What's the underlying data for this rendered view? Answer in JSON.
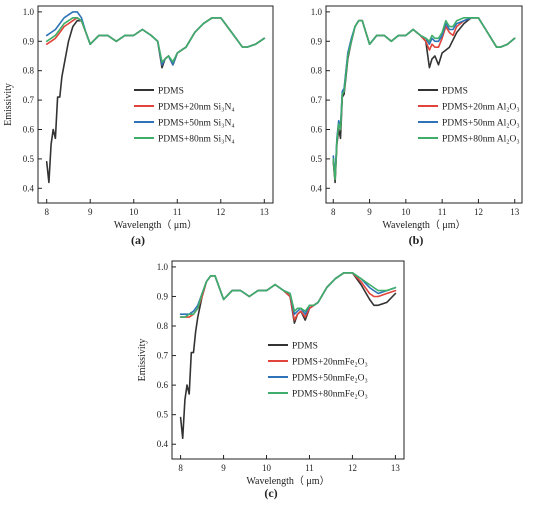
{
  "chart_data": [
    {
      "panel": "(a)",
      "panel_letter": "a",
      "type": "line",
      "xlabel": "Wavelength（ μm）",
      "ylabel": "Emissivity",
      "xlim": [
        7.8,
        13.2
      ],
      "ylim": [
        0.35,
        1.02
      ],
      "xticks": [
        8,
        9,
        10,
        11,
        12,
        13
      ],
      "yticks": [
        0.4,
        0.5,
        0.6,
        0.7,
        0.8,
        0.9,
        1.0
      ],
      "legend_position": "lower-right",
      "grid": false,
      "series": [
        {
          "name": "PDMS",
          "color": "#333333",
          "x": [
            8.0,
            8.05,
            8.1,
            8.15,
            8.2,
            8.25,
            8.3,
            8.35,
            8.4,
            8.45,
            8.5,
            8.6,
            8.7,
            8.8,
            8.9,
            9.0,
            9.2,
            9.4,
            9.6,
            9.8,
            10.0,
            10.2,
            10.4,
            10.55,
            10.65,
            10.72,
            10.8,
            10.9,
            11.0,
            11.1,
            11.2,
            11.4,
            11.6,
            11.8,
            12.0,
            12.2,
            12.4,
            12.5,
            12.6,
            12.8,
            13.0
          ],
          "y": [
            0.49,
            0.42,
            0.55,
            0.6,
            0.57,
            0.71,
            0.71,
            0.78,
            0.82,
            0.86,
            0.9,
            0.95,
            0.97,
            0.97,
            0.93,
            0.89,
            0.92,
            0.92,
            0.9,
            0.92,
            0.92,
            0.94,
            0.92,
            0.9,
            0.81,
            0.84,
            0.85,
            0.82,
            0.86,
            0.87,
            0.88,
            0.93,
            0.96,
            0.98,
            0.98,
            0.94,
            0.9,
            0.88,
            0.88,
            0.89,
            0.91
          ]
        },
        {
          "name": "PDMS+20nm Si₃N₄",
          "color": "#e0443a",
          "x": [
            8.0,
            8.1,
            8.2,
            8.3,
            8.4,
            8.5,
            8.6,
            8.7,
            8.8,
            8.9,
            9.0,
            9.2,
            9.4,
            9.6,
            9.8,
            10.0,
            10.2,
            10.4,
            10.55,
            10.65,
            10.72,
            10.8,
            10.9,
            11.0,
            11.1,
            11.2,
            11.4,
            11.6,
            11.8,
            12.0,
            12.2,
            12.4,
            12.5,
            12.6,
            12.8,
            13.0
          ],
          "y": [
            0.89,
            0.9,
            0.91,
            0.93,
            0.95,
            0.96,
            0.97,
            0.98,
            0.97,
            0.93,
            0.89,
            0.92,
            0.92,
            0.9,
            0.92,
            0.92,
            0.94,
            0.92,
            0.9,
            0.82,
            0.84,
            0.85,
            0.82,
            0.86,
            0.87,
            0.88,
            0.93,
            0.96,
            0.98,
            0.98,
            0.94,
            0.9,
            0.88,
            0.88,
            0.89,
            0.91
          ]
        },
        {
          "name": "PDMS+50nm Si₃N₄",
          "color": "#2e73b8",
          "x": [
            8.0,
            8.1,
            8.2,
            8.3,
            8.4,
            8.5,
            8.6,
            8.7,
            8.8,
            8.9,
            9.0,
            9.2,
            9.4,
            9.6,
            9.8,
            10.0,
            10.2,
            10.4,
            10.55,
            10.65,
            10.72,
            10.8,
            10.9,
            11.0,
            11.1,
            11.2,
            11.4,
            11.6,
            11.8,
            12.0,
            12.2,
            12.4,
            12.5,
            12.6,
            12.8,
            13.0
          ],
          "y": [
            0.92,
            0.93,
            0.94,
            0.96,
            0.98,
            0.99,
            1.0,
            1.0,
            0.98,
            0.93,
            0.89,
            0.92,
            0.92,
            0.9,
            0.92,
            0.92,
            0.94,
            0.92,
            0.9,
            0.82,
            0.84,
            0.85,
            0.82,
            0.86,
            0.87,
            0.88,
            0.93,
            0.96,
            0.98,
            0.98,
            0.94,
            0.9,
            0.88,
            0.88,
            0.89,
            0.91
          ]
        },
        {
          "name": "PDMS+80nm Si₃N₄",
          "color": "#3fae6a",
          "x": [
            8.0,
            8.1,
            8.2,
            8.3,
            8.4,
            8.5,
            8.6,
            8.7,
            8.8,
            8.9,
            9.0,
            9.2,
            9.4,
            9.6,
            9.8,
            10.0,
            10.2,
            10.4,
            10.55,
            10.65,
            10.72,
            10.8,
            10.9,
            11.0,
            11.1,
            11.2,
            11.4,
            11.6,
            11.8,
            12.0,
            12.2,
            12.4,
            12.5,
            12.6,
            12.8,
            13.0
          ],
          "y": [
            0.9,
            0.91,
            0.92,
            0.94,
            0.96,
            0.97,
            0.98,
            0.98,
            0.97,
            0.93,
            0.89,
            0.92,
            0.92,
            0.9,
            0.92,
            0.92,
            0.94,
            0.92,
            0.9,
            0.83,
            0.84,
            0.85,
            0.83,
            0.86,
            0.87,
            0.88,
            0.93,
            0.96,
            0.98,
            0.98,
            0.94,
            0.9,
            0.88,
            0.88,
            0.89,
            0.91
          ]
        }
      ]
    },
    {
      "panel": "(b)",
      "panel_letter": "b",
      "type": "line",
      "xlabel": "Wavelength（ μm）",
      "ylabel": "",
      "xlim": [
        7.8,
        13.2
      ],
      "ylim": [
        0.35,
        1.02
      ],
      "xticks": [
        8,
        9,
        10,
        11,
        12,
        13
      ],
      "yticks": [
        0.4,
        0.5,
        0.6,
        0.7,
        0.8,
        0.9,
        1.0
      ],
      "legend_position": "lower-right",
      "grid": false,
      "series": [
        {
          "name": "PDMS",
          "color": "#333333",
          "x": [
            8.0,
            8.05,
            8.1,
            8.15,
            8.2,
            8.25,
            8.3,
            8.35,
            8.4,
            8.5,
            8.6,
            8.7,
            8.8,
            8.9,
            9.0,
            9.2,
            9.4,
            9.6,
            9.8,
            10.0,
            10.2,
            10.4,
            10.55,
            10.65,
            10.72,
            10.8,
            10.9,
            11.0,
            11.1,
            11.2,
            11.4,
            11.6,
            11.8,
            12.0,
            12.2,
            12.4,
            12.5,
            12.6,
            12.8,
            13.0
          ],
          "y": [
            0.49,
            0.42,
            0.55,
            0.6,
            0.57,
            0.71,
            0.72,
            0.78,
            0.84,
            0.9,
            0.95,
            0.97,
            0.97,
            0.93,
            0.89,
            0.92,
            0.92,
            0.9,
            0.92,
            0.92,
            0.94,
            0.92,
            0.9,
            0.81,
            0.84,
            0.85,
            0.82,
            0.86,
            0.87,
            0.88,
            0.93,
            0.96,
            0.98,
            0.98,
            0.94,
            0.9,
            0.88,
            0.88,
            0.89,
            0.91
          ]
        },
        {
          "name": "PDMS+20nm Al₂O₃",
          "color": "#e0443a",
          "x": [
            8.0,
            8.05,
            8.1,
            8.15,
            8.2,
            8.25,
            8.3,
            8.35,
            8.4,
            8.5,
            8.6,
            8.7,
            8.8,
            8.9,
            9.0,
            9.2,
            9.4,
            9.6,
            9.8,
            10.0,
            10.2,
            10.4,
            10.55,
            10.65,
            10.72,
            10.8,
            10.9,
            11.0,
            11.1,
            11.2,
            11.3,
            11.4,
            11.6,
            11.8,
            12.0,
            12.2,
            12.4,
            12.5,
            12.6,
            12.8,
            13.0
          ],
          "y": [
            0.5,
            0.43,
            0.56,
            0.62,
            0.6,
            0.72,
            0.73,
            0.8,
            0.85,
            0.9,
            0.95,
            0.97,
            0.97,
            0.93,
            0.89,
            0.92,
            0.92,
            0.9,
            0.92,
            0.92,
            0.94,
            0.92,
            0.9,
            0.87,
            0.89,
            0.88,
            0.88,
            0.91,
            0.95,
            0.93,
            0.92,
            0.95,
            0.97,
            0.98,
            0.98,
            0.94,
            0.9,
            0.88,
            0.88,
            0.89,
            0.91
          ]
        },
        {
          "name": "PDMS+50nm Al₂O₃",
          "color": "#2e73b8",
          "x": [
            8.0,
            8.05,
            8.1,
            8.15,
            8.2,
            8.25,
            8.3,
            8.35,
            8.4,
            8.5,
            8.6,
            8.7,
            8.8,
            8.9,
            9.0,
            9.2,
            9.4,
            9.6,
            9.8,
            10.0,
            10.2,
            10.4,
            10.55,
            10.65,
            10.72,
            10.8,
            10.9,
            11.0,
            11.1,
            11.2,
            11.3,
            11.4,
            11.6,
            11.8,
            12.0,
            12.2,
            12.4,
            12.5,
            12.6,
            12.8,
            13.0
          ],
          "y": [
            0.51,
            0.44,
            0.57,
            0.63,
            0.61,
            0.73,
            0.74,
            0.8,
            0.86,
            0.91,
            0.95,
            0.97,
            0.97,
            0.93,
            0.89,
            0.92,
            0.92,
            0.9,
            0.92,
            0.92,
            0.94,
            0.92,
            0.91,
            0.89,
            0.91,
            0.9,
            0.9,
            0.92,
            0.96,
            0.94,
            0.94,
            0.96,
            0.97,
            0.98,
            0.98,
            0.94,
            0.9,
            0.88,
            0.88,
            0.89,
            0.91
          ]
        },
        {
          "name": "PDMS+80nm Al₂O₃",
          "color": "#3fae6a",
          "x": [
            8.0,
            8.05,
            8.1,
            8.15,
            8.2,
            8.25,
            8.3,
            8.35,
            8.4,
            8.5,
            8.6,
            8.7,
            8.8,
            8.9,
            9.0,
            9.2,
            9.4,
            9.6,
            9.8,
            10.0,
            10.2,
            10.4,
            10.55,
            10.65,
            10.72,
            10.8,
            10.9,
            11.0,
            11.1,
            11.2,
            11.3,
            11.4,
            11.6,
            11.8,
            12.0,
            12.2,
            12.4,
            12.5,
            12.6,
            12.8,
            13.0
          ],
          "y": [
            0.5,
            0.43,
            0.56,
            0.62,
            0.6,
            0.72,
            0.73,
            0.79,
            0.85,
            0.9,
            0.95,
            0.97,
            0.97,
            0.93,
            0.89,
            0.92,
            0.92,
            0.9,
            0.92,
            0.92,
            0.94,
            0.92,
            0.91,
            0.9,
            0.92,
            0.91,
            0.91,
            0.93,
            0.97,
            0.95,
            0.95,
            0.97,
            0.98,
            0.98,
            0.98,
            0.94,
            0.9,
            0.88,
            0.88,
            0.89,
            0.91
          ]
        }
      ]
    },
    {
      "panel": "(c)",
      "panel_letter": "c",
      "type": "line",
      "xlabel": "Wavelength（ μm）",
      "ylabel": "Emissivity",
      "xlim": [
        7.8,
        13.2
      ],
      "ylim": [
        0.35,
        1.02
      ],
      "xticks": [
        8,
        9,
        10,
        11,
        12,
        13
      ],
      "yticks": [
        0.4,
        0.5,
        0.6,
        0.7,
        0.8,
        0.9,
        1.0
      ],
      "legend_position": "lower-right",
      "grid": false,
      "series": [
        {
          "name": "PDMS",
          "color": "#333333",
          "x": [
            8.0,
            8.05,
            8.1,
            8.15,
            8.2,
            8.25,
            8.3,
            8.35,
            8.4,
            8.5,
            8.6,
            8.7,
            8.8,
            8.9,
            9.0,
            9.2,
            9.4,
            9.6,
            9.8,
            10.0,
            10.2,
            10.4,
            10.55,
            10.65,
            10.72,
            10.8,
            10.9,
            11.0,
            11.1,
            11.2,
            11.4,
            11.6,
            11.8,
            12.0,
            12.2,
            12.4,
            12.5,
            12.6,
            12.8,
            13.0
          ],
          "y": [
            0.49,
            0.42,
            0.55,
            0.6,
            0.57,
            0.71,
            0.71,
            0.78,
            0.83,
            0.9,
            0.95,
            0.97,
            0.97,
            0.93,
            0.89,
            0.92,
            0.92,
            0.9,
            0.92,
            0.92,
            0.94,
            0.92,
            0.9,
            0.81,
            0.84,
            0.85,
            0.82,
            0.86,
            0.87,
            0.88,
            0.93,
            0.96,
            0.98,
            0.98,
            0.94,
            0.89,
            0.87,
            0.87,
            0.88,
            0.91
          ]
        },
        {
          "name": "PDMS+20nmFe₂O₃",
          "color": "#e0443a",
          "x": [
            8.0,
            8.1,
            8.2,
            8.3,
            8.4,
            8.5,
            8.6,
            8.7,
            8.8,
            8.9,
            9.0,
            9.2,
            9.4,
            9.6,
            9.8,
            10.0,
            10.2,
            10.4,
            10.55,
            10.65,
            10.72,
            10.8,
            10.9,
            11.0,
            11.1,
            11.2,
            11.4,
            11.6,
            11.8,
            12.0,
            12.2,
            12.4,
            12.5,
            12.6,
            12.8,
            13.0
          ],
          "y": [
            0.83,
            0.83,
            0.83,
            0.84,
            0.86,
            0.9,
            0.95,
            0.97,
            0.97,
            0.93,
            0.89,
            0.92,
            0.92,
            0.9,
            0.92,
            0.92,
            0.94,
            0.92,
            0.9,
            0.82,
            0.84,
            0.85,
            0.83,
            0.86,
            0.87,
            0.88,
            0.93,
            0.96,
            0.98,
            0.98,
            0.95,
            0.91,
            0.9,
            0.9,
            0.91,
            0.92
          ]
        },
        {
          "name": "PDMS+50nmFe₂O₃",
          "color": "#2e73b8",
          "x": [
            8.0,
            8.1,
            8.2,
            8.3,
            8.4,
            8.5,
            8.6,
            8.7,
            8.8,
            8.9,
            9.0,
            9.2,
            9.4,
            9.6,
            9.8,
            10.0,
            10.2,
            10.4,
            10.55,
            10.65,
            10.72,
            10.8,
            10.9,
            11.0,
            11.1,
            11.2,
            11.4,
            11.6,
            11.8,
            12.0,
            12.2,
            12.4,
            12.5,
            12.6,
            12.8,
            13.0
          ],
          "y": [
            0.84,
            0.84,
            0.84,
            0.85,
            0.87,
            0.91,
            0.95,
            0.97,
            0.97,
            0.93,
            0.89,
            0.92,
            0.92,
            0.9,
            0.92,
            0.92,
            0.94,
            0.92,
            0.91,
            0.84,
            0.85,
            0.86,
            0.84,
            0.87,
            0.87,
            0.88,
            0.93,
            0.96,
            0.98,
            0.98,
            0.96,
            0.93,
            0.92,
            0.91,
            0.92,
            0.93
          ]
        },
        {
          "name": "PDMS+80nmFe₂O₃",
          "color": "#3fae6a",
          "x": [
            8.0,
            8.1,
            8.2,
            8.3,
            8.4,
            8.5,
            8.6,
            8.7,
            8.8,
            8.9,
            9.0,
            9.2,
            9.4,
            9.6,
            9.8,
            10.0,
            10.2,
            10.4,
            10.55,
            10.65,
            10.72,
            10.8,
            10.9,
            11.0,
            11.1,
            11.2,
            11.4,
            11.6,
            11.8,
            12.0,
            12.2,
            12.4,
            12.5,
            12.6,
            12.8,
            13.0
          ],
          "y": [
            0.83,
            0.83,
            0.84,
            0.84,
            0.86,
            0.91,
            0.95,
            0.97,
            0.97,
            0.93,
            0.89,
            0.92,
            0.92,
            0.9,
            0.92,
            0.92,
            0.94,
            0.92,
            0.91,
            0.85,
            0.86,
            0.86,
            0.85,
            0.87,
            0.87,
            0.88,
            0.93,
            0.96,
            0.98,
            0.98,
            0.96,
            0.94,
            0.93,
            0.92,
            0.92,
            0.93
          ]
        }
      ]
    }
  ]
}
